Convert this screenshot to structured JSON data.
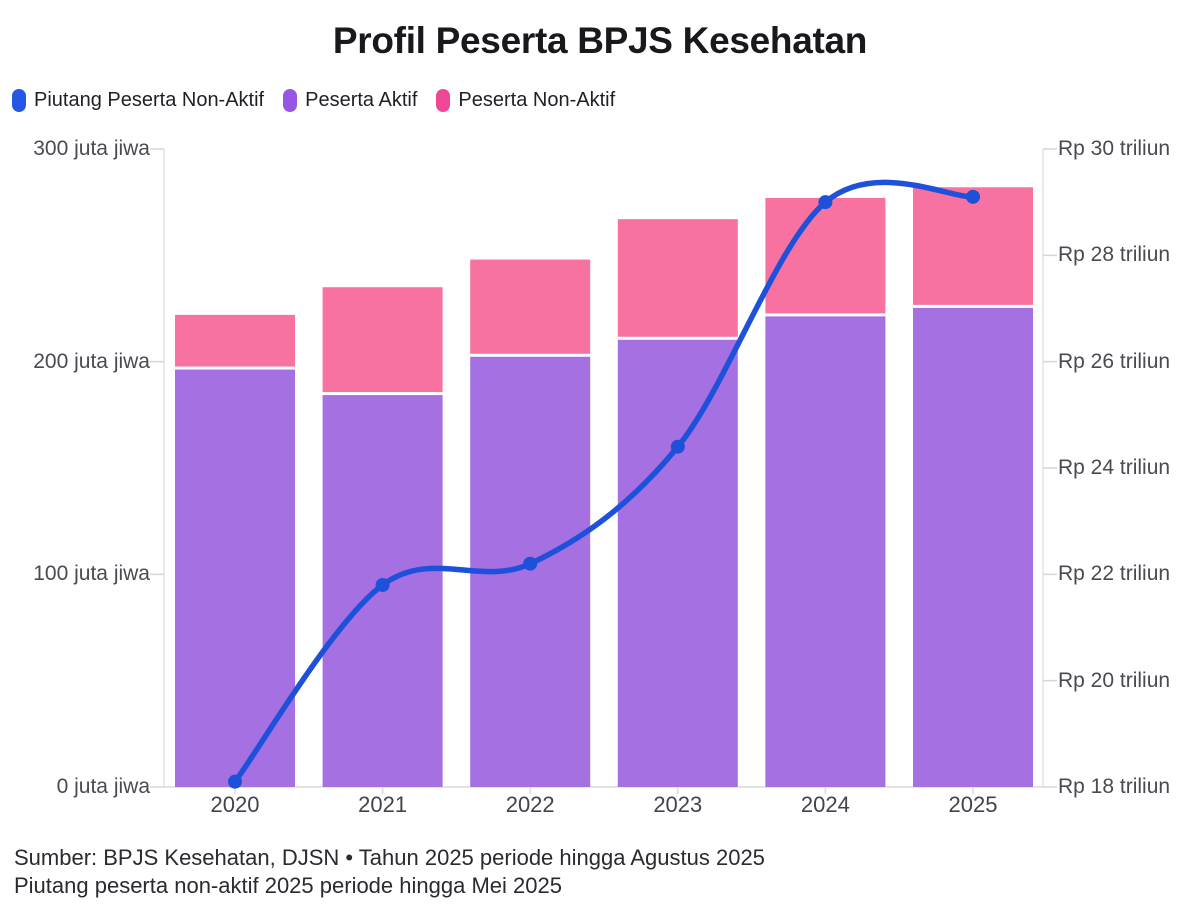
{
  "title": "Profil Peserta BPJS Kesehatan",
  "legend": {
    "items": [
      {
        "label": "Piutang Peserta Non-Aktif",
        "color": "#2357e4"
      },
      {
        "label": "Peserta Aktif",
        "color": "#9757e4"
      },
      {
        "label": "Peserta Non-Aktif",
        "color": "#ee4795"
      }
    ]
  },
  "footer": {
    "line1": "Sumber: BPJS Kesehatan, DJSN • Tahun 2025 periode hingga Agustus 2025",
    "line2": "Piutang peserta non-aktif 2025 periode hingga Mei 2025"
  },
  "chart_data": {
    "type": "bar",
    "subtype": "stacked-columns-with-line-overlay",
    "title": "Profil Peserta BPJS Kesehatan",
    "categories": [
      "2020",
      "2021",
      "2022",
      "2023",
      "2024",
      "2025"
    ],
    "series": [
      {
        "name": "Peserta Aktif",
        "type": "bar",
        "stack": true,
        "axis": "left",
        "unit": "juta jiwa",
        "color": "#a470e2",
        "values": [
          197,
          185,
          203,
          211,
          222,
          226
        ]
      },
      {
        "name": "Peserta Non-Aktif",
        "type": "bar",
        "stack": true,
        "axis": "left",
        "unit": "juta jiwa",
        "color": "#f771a1",
        "values": [
          25,
          50,
          45,
          56,
          55,
          56
        ]
      },
      {
        "name": "Piutang Peserta Non-Aktif",
        "type": "line",
        "axis": "right",
        "unit": "Rp triliun",
        "color": "#1e51d9",
        "values": [
          18.1,
          21.8,
          22.2,
          24.4,
          29.0,
          29.1
        ]
      }
    ],
    "stack_totals": [
      222,
      235,
      248,
      267,
      277,
      282
    ],
    "left_axis": {
      "range": [
        0,
        300
      ],
      "tick_values": [
        0,
        100,
        200,
        300
      ],
      "tick_labels": [
        "0 juta jiwa",
        "100 juta jiwa",
        "200 juta jiwa",
        "300 juta jiwa"
      ]
    },
    "right_axis": {
      "range": [
        18,
        30
      ],
      "tick_values": [
        18,
        20,
        22,
        24,
        26,
        28,
        30
      ],
      "tick_labels": [
        "Rp 18 triliun",
        "Rp 20 triliun",
        "Rp 22 triliun",
        "Rp 24 triliun",
        "Rp 26 triliun",
        "Rp 28 triliun",
        "Rp 30 triliun"
      ]
    },
    "grid": "off",
    "legend_position": "top-left",
    "bar_separator_color": "#ffffff",
    "background": "#ffffff"
  }
}
